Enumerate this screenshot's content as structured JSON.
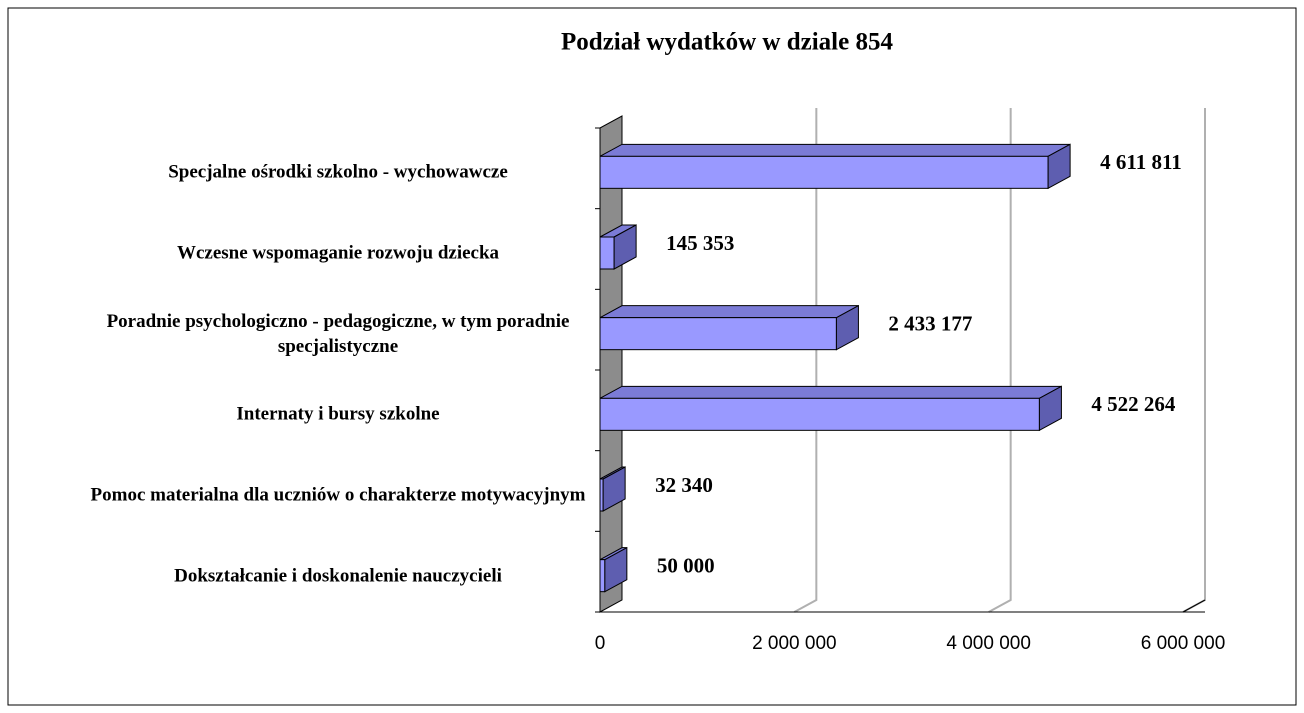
{
  "chart_data": {
    "type": "bar3d_horizontal",
    "title": "Podział wydatków w dziale 854",
    "categories": [
      "Specjalne ośrodki szkolno - wychowawcze",
      "Wczesne wspomaganie rozwoju dziecka",
      "Poradnie psychologiczno - pedagogiczne, w tym poradnie specjalistyczne",
      "Internaty i bursy szkolne",
      "Pomoc materialna dla uczniów o charakterze motywacyjnym",
      "Dokształcanie i doskonalenie nauczycieli"
    ],
    "values": [
      4611811,
      145353,
      2433177,
      4522264,
      32340,
      50000
    ],
    "value_labels": [
      "4 611 811",
      "145 353",
      "2 433 177",
      "4 522 264",
      "32 340",
      "50 000"
    ],
    "color": "#9999ff",
    "xlim": [
      0,
      6000000
    ],
    "xticks": [
      0,
      {
        "value": 2000000,
        "label": "2 000 000"
      },
      {
        "value": 4000000,
        "label": "4 000 000"
      },
      {
        "value": 6000000,
        "label": "6 000 000"
      }
    ],
    "grid": true
  }
}
